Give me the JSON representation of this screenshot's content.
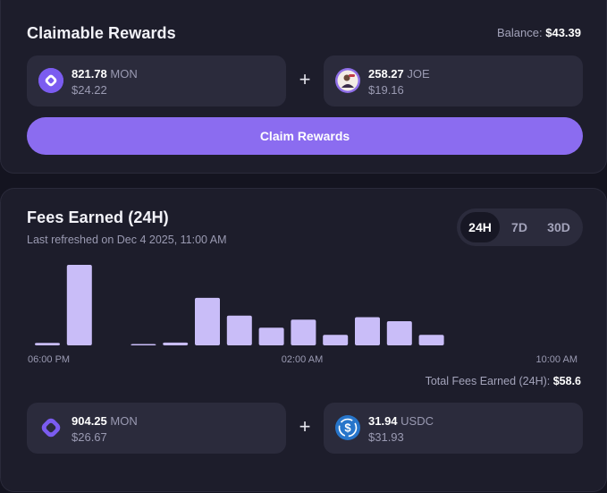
{
  "rewards": {
    "title": "Claimable Rewards",
    "balance_label": "Balance:",
    "balance_value": "$43.39",
    "token_a": {
      "amount": "821.78",
      "symbol": "MON",
      "usd": "$24.22",
      "icon": "mon-token-icon"
    },
    "token_b": {
      "amount": "258.27",
      "symbol": "JOE",
      "usd": "$19.16",
      "icon": "joe-token-icon"
    },
    "plus": "+",
    "claim_label": "Claim Rewards"
  },
  "fees": {
    "title": "Fees Earned (24H)",
    "subtitle": "Last refreshed on Dec 4 2025, 11:00 AM",
    "ranges": [
      "24H",
      "7D",
      "30D"
    ],
    "active_range": "24H",
    "total_label": "Total Fees Earned (24H):",
    "total_value": "$58.6",
    "token_a": {
      "amount": "904.25",
      "symbol": "MON",
      "usd": "$26.67",
      "icon": "mon-token-icon"
    },
    "token_b": {
      "amount": "31.94",
      "symbol": "USDC",
      "usd": "$31.93",
      "icon": "usdc-token-icon"
    },
    "plus": "+"
  },
  "colors": {
    "bar": "#C9BDF8",
    "accent": "#8B6CF0",
    "usdc": "#2775CA"
  },
  "chart_data": {
    "type": "bar",
    "x_tick_labels": [
      "06:00 PM",
      "02:00 AM",
      "10:00 AM"
    ],
    "values": [
      3,
      100,
      0,
      1.2,
      3.5,
      59,
      37,
      22,
      32,
      13,
      35,
      30,
      13,
      0,
      0,
      0,
      0
    ],
    "ylim": [
      0,
      100
    ],
    "grid": false,
    "legend": "none"
  }
}
